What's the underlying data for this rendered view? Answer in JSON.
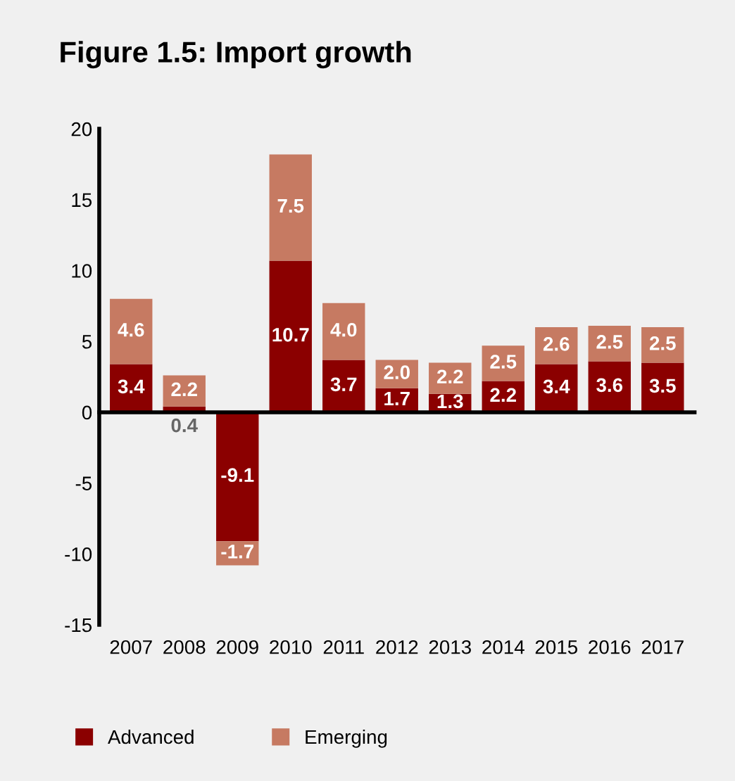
{
  "chart_data": {
    "type": "bar",
    "title": "Figure 1.5: Import growth",
    "stacked": true,
    "legend": "bottom",
    "categories": [
      "2007",
      "2008",
      "2009",
      "2010",
      "2011",
      "2012",
      "2013",
      "2014",
      "2015",
      "2016",
      "2017"
    ],
    "ylim": [
      -15,
      20
    ],
    "yticks": [
      -15,
      -10,
      -5,
      0,
      5,
      10,
      15,
      20
    ],
    "series": [
      {
        "name": "Advanced",
        "color": "#8b0000",
        "values": [
          3.4,
          0.4,
          -9.1,
          10.7,
          3.7,
          1.7,
          1.3,
          2.2,
          3.4,
          3.6,
          3.5
        ],
        "value_labels": [
          "3.4",
          "0.4",
          "-9.1",
          "10.7",
          "3.7",
          "1.7",
          "1.3",
          "2.2",
          "3.4",
          "3.6",
          "3.5"
        ]
      },
      {
        "name": "Emerging",
        "color": "#c67a62",
        "values": [
          4.6,
          2.2,
          -1.7,
          7.5,
          4.0,
          2.0,
          2.2,
          2.5,
          2.6,
          2.5,
          2.5
        ],
        "value_labels": [
          "4.6",
          "2.2",
          "-1.7",
          "7.5",
          "4.0",
          "2.0",
          "2.2",
          "2.5",
          "2.6",
          "2.5",
          "2.5"
        ]
      }
    ]
  }
}
